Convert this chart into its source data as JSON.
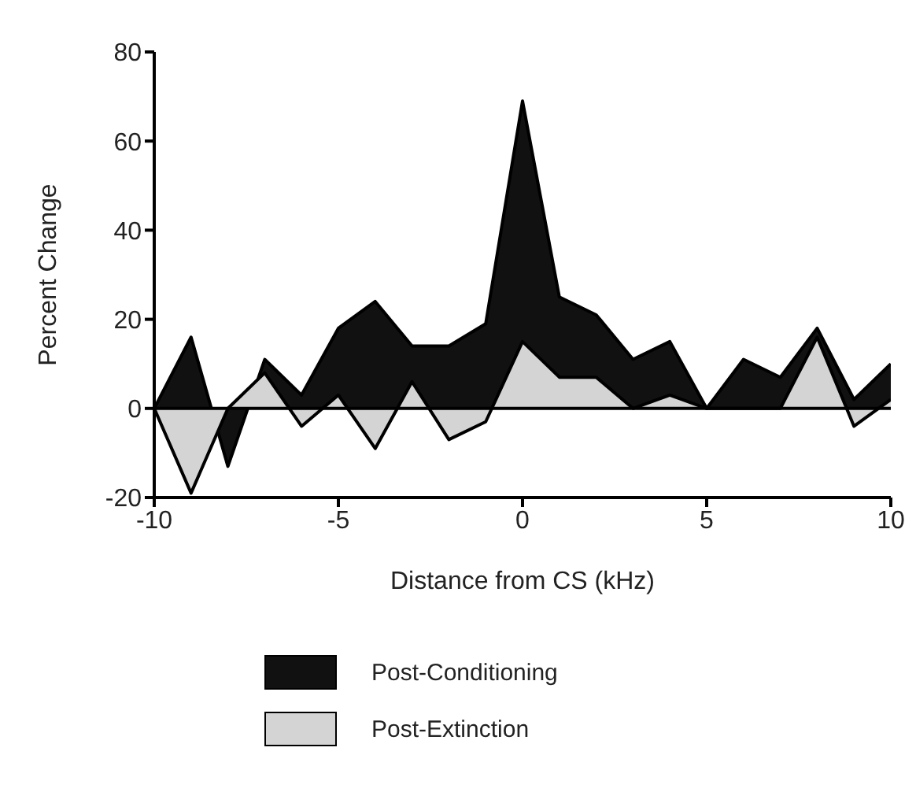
{
  "chart_data": {
    "type": "area",
    "xlabel": "Distance from CS (kHz)",
    "ylabel": "Percent Change",
    "x": [
      -10,
      -9,
      -8,
      -7,
      -6,
      -5,
      -4,
      -3,
      -2,
      -1,
      0,
      1,
      2,
      3,
      4,
      5,
      6,
      7,
      8,
      9,
      10
    ],
    "series": [
      {
        "name": "Post-Conditioning",
        "color": "#111111",
        "values": [
          0,
          16,
          -13,
          11,
          3,
          18,
          24,
          14,
          14,
          19,
          69,
          25,
          21,
          11,
          15,
          0,
          11,
          7,
          18,
          2,
          10
        ]
      },
      {
        "name": "Post-Extinction",
        "color": "#d4d4d4",
        "values": [
          0,
          -19,
          0,
          8,
          -4,
          3,
          -9,
          6,
          -7,
          -3,
          15,
          7,
          7,
          0,
          3,
          0,
          0,
          0,
          16,
          -4,
          2
        ]
      }
    ],
    "xlim": [
      -10,
      10
    ],
    "xticks": [
      -10,
      -5,
      0,
      5,
      10
    ],
    "ylim": [
      -20,
      80
    ],
    "yticks": [
      -20,
      0,
      20,
      40,
      60,
      80
    ],
    "ref_lines": [
      {
        "axis": "y",
        "value": 0,
        "color": "#000000"
      }
    ],
    "grid": false,
    "legend": "bottom"
  }
}
